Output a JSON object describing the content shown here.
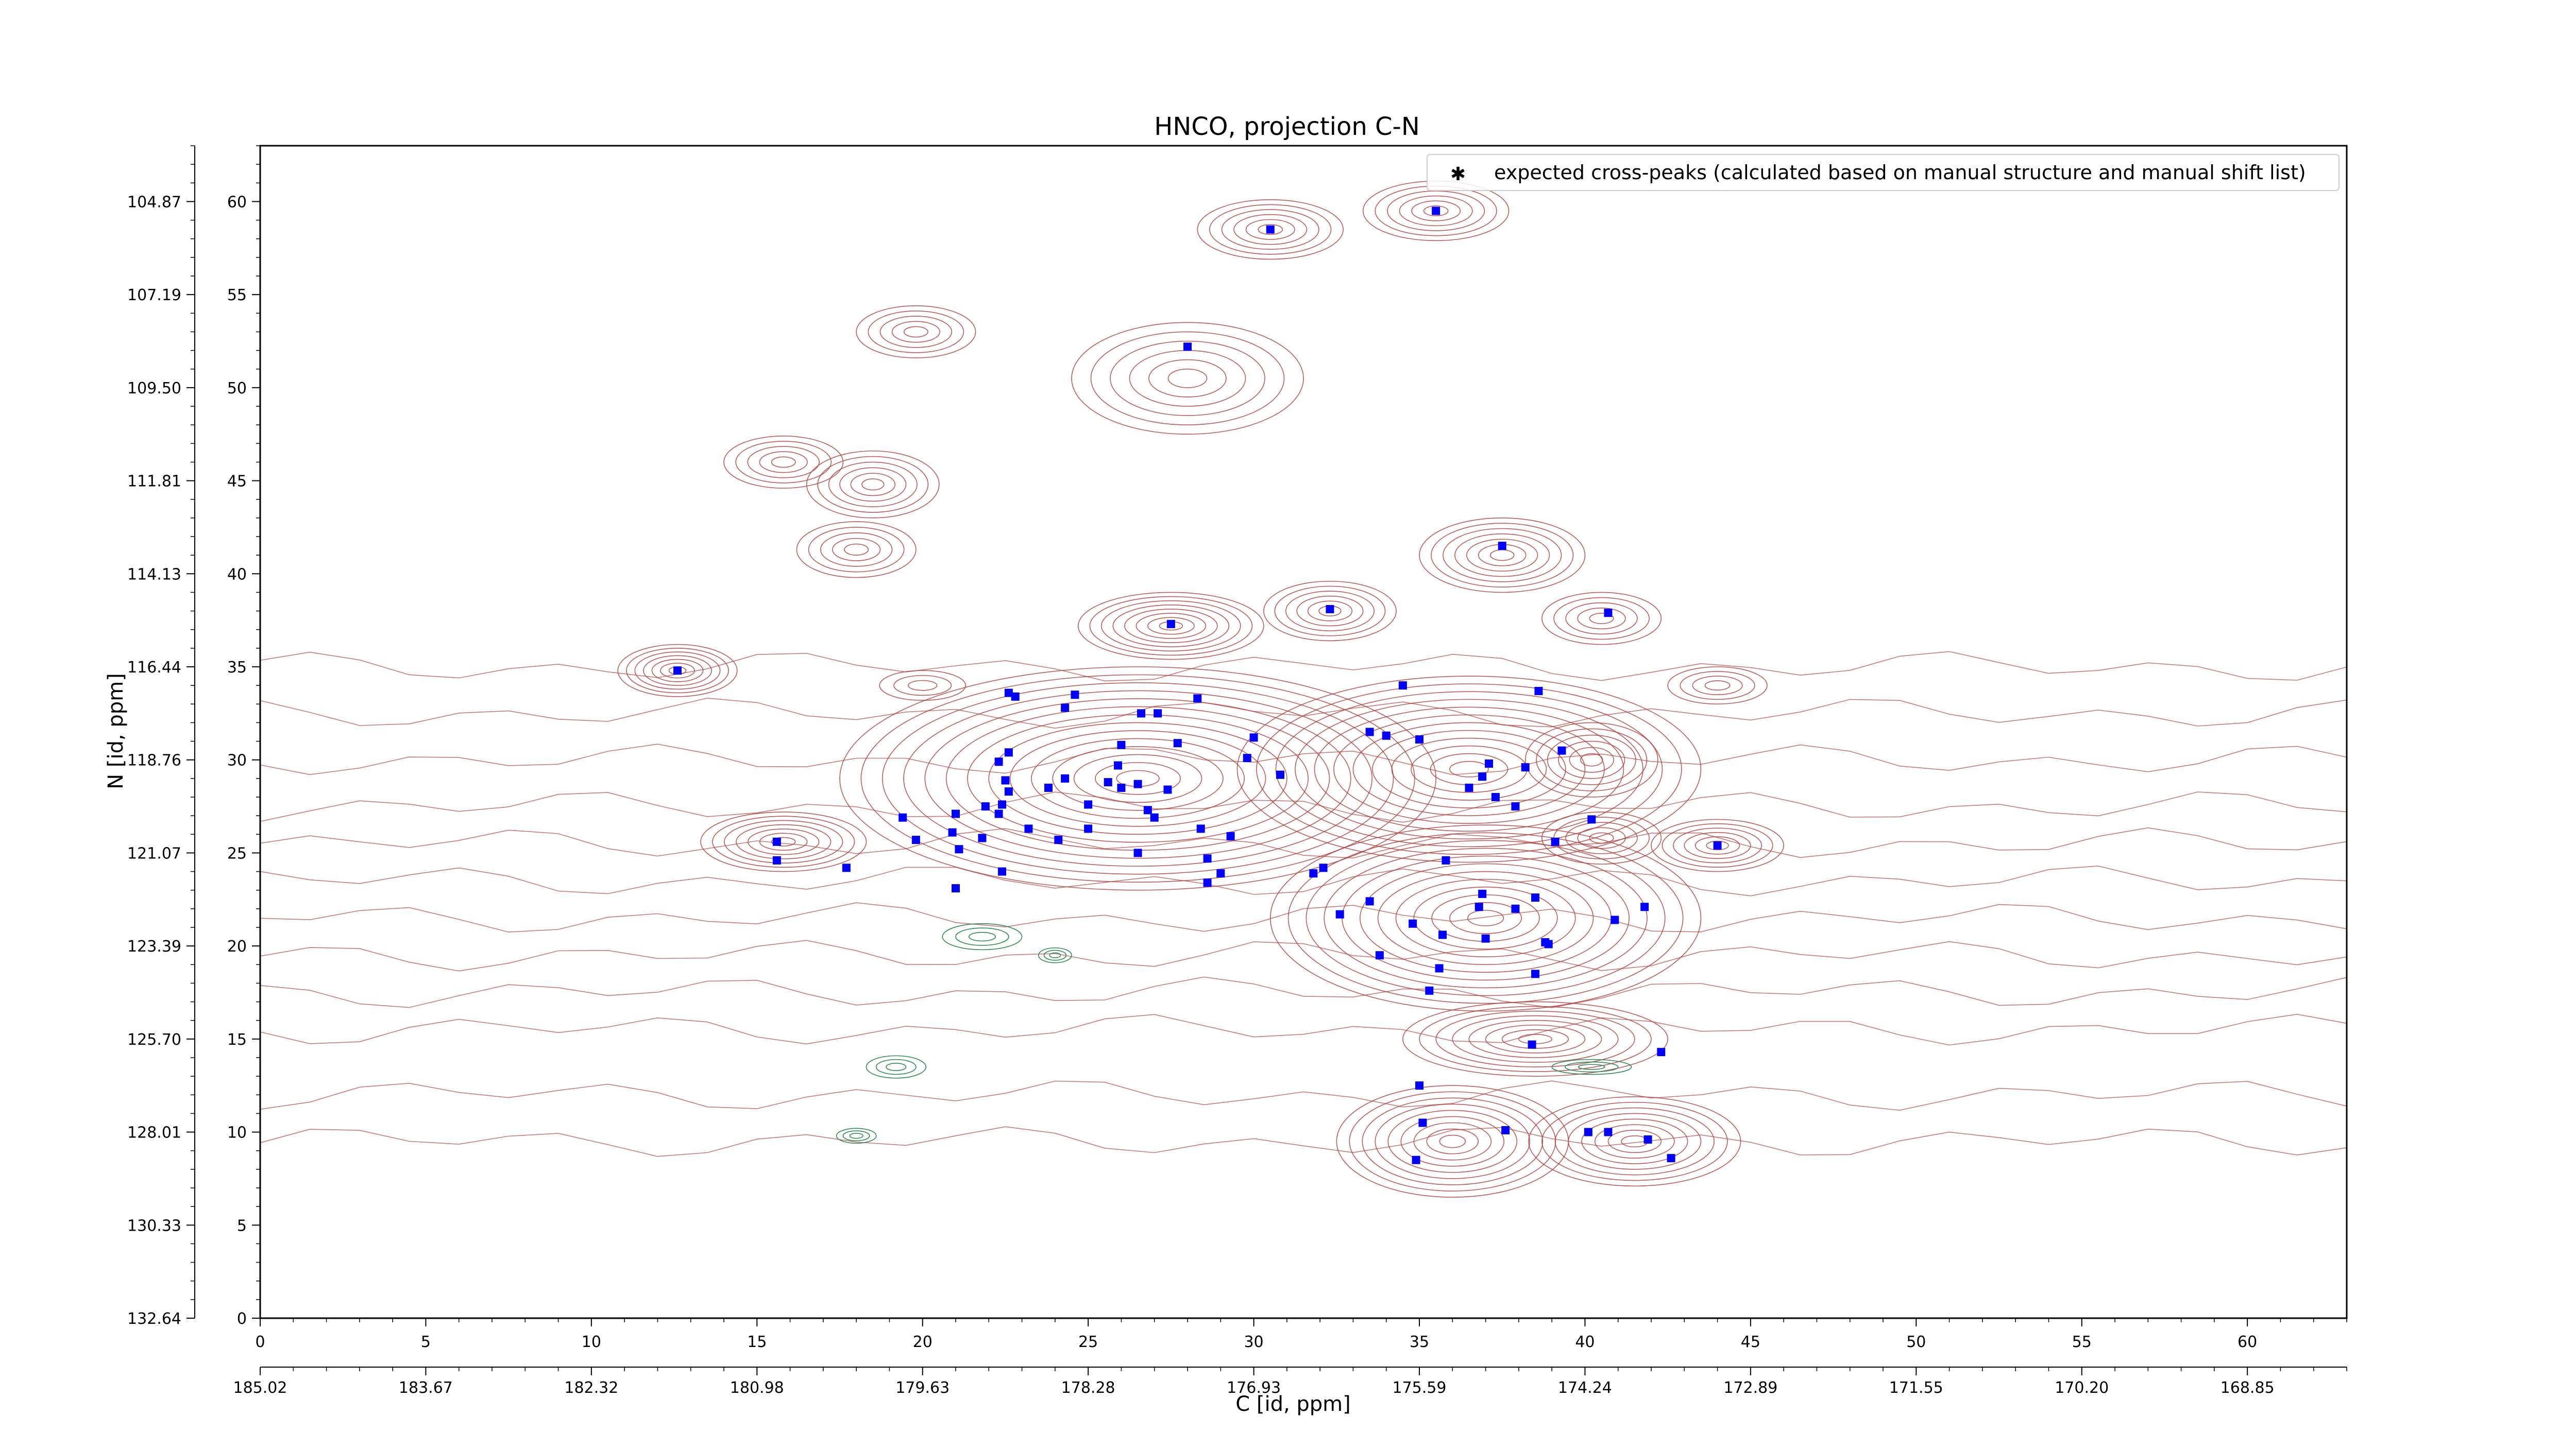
{
  "chart_data": {
    "type": "scatter",
    "title": "HNCO, projection C-N",
    "xlabel": "C [id, ppm]",
    "ylabel": "N [id, ppm]",
    "xlim": [
      0,
      63
    ],
    "ylim": [
      0,
      63
    ],
    "x_ticks": [
      0,
      5,
      10,
      15,
      20,
      25,
      30,
      35,
      40,
      45,
      50,
      55,
      60
    ],
    "y_ticks": [
      0,
      5,
      10,
      15,
      20,
      25,
      30,
      35,
      40,
      45,
      50,
      55,
      60
    ],
    "secondary_x_ticks": [
      {
        "x": 0,
        "label": "185.02"
      },
      {
        "x": 5,
        "label": "183.67"
      },
      {
        "x": 10,
        "label": "182.32"
      },
      {
        "x": 15,
        "label": "180.98"
      },
      {
        "x": 20,
        "label": "179.63"
      },
      {
        "x": 25,
        "label": "178.28"
      },
      {
        "x": 30,
        "label": "176.93"
      },
      {
        "x": 35,
        "label": "175.59"
      },
      {
        "x": 40,
        "label": "174.24"
      },
      {
        "x": 45,
        "label": "172.89"
      },
      {
        "x": 50,
        "label": "171.55"
      },
      {
        "x": 55,
        "label": "170.20"
      },
      {
        "x": 60,
        "label": "168.85"
      }
    ],
    "secondary_y_ticks": [
      {
        "y": 60,
        "label": "104.87"
      },
      {
        "y": 55,
        "label": "107.19"
      },
      {
        "y": 50,
        "label": "109.50"
      },
      {
        "y": 45,
        "label": "111.81"
      },
      {
        "y": 40,
        "label": "114.13"
      },
      {
        "y": 35,
        "label": "116.44"
      },
      {
        "y": 30,
        "label": "118.76"
      },
      {
        "y": 25,
        "label": "121.07"
      },
      {
        "y": 20,
        "label": "123.39"
      },
      {
        "y": 15,
        "label": "125.70"
      },
      {
        "y": 10,
        "label": "128.01"
      },
      {
        "y": 5,
        "label": "130.33"
      },
      {
        "y": 0,
        "label": "132.64"
      }
    ],
    "legend": {
      "position": "top-right",
      "entries": [
        "expected cross-peaks (calculated based on manual structure and manual shift list)"
      ]
    },
    "grid": false,
    "colors": {
      "peaks": "#0000ff",
      "contour_positive": "#b0413e",
      "contour_negative": "#2e8b57"
    },
    "series": [
      {
        "name": "expected cross-peaks (calculated based on manual structure and manual shift list)",
        "points": [
          [
            30.5,
            58.5
          ],
          [
            35.5,
            59.5
          ],
          [
            28,
            52.2
          ],
          [
            37.5,
            41.5
          ],
          [
            27.5,
            37.3
          ],
          [
            32.3,
            38.1
          ],
          [
            40.7,
            37.9
          ],
          [
            12.6,
            34.8
          ],
          [
            22.6,
            33.6
          ],
          [
            22.8,
            33.4
          ],
          [
            24.6,
            33.5
          ],
          [
            24.3,
            32.8
          ],
          [
            26.6,
            32.5
          ],
          [
            27.1,
            32.5
          ],
          [
            28.3,
            33.3
          ],
          [
            34.5,
            34.0
          ],
          [
            33.5,
            31.5
          ],
          [
            34.0,
            31.3
          ],
          [
            35.0,
            31.1
          ],
          [
            38.6,
            33.7
          ],
          [
            30,
            31.2
          ],
          [
            29.8,
            30.1
          ],
          [
            30.8,
            29.2
          ],
          [
            27.7,
            30.9
          ],
          [
            26.0,
            30.8
          ],
          [
            25.9,
            29.7
          ],
          [
            22.3,
            29.9
          ],
          [
            22.6,
            30.4
          ],
          [
            24.3,
            29.0
          ],
          [
            23.8,
            28.5
          ],
          [
            22.5,
            28.9
          ],
          [
            22.6,
            28.3
          ],
          [
            22.4,
            27.6
          ],
          [
            25.6,
            28.8
          ],
          [
            26.0,
            28.5
          ],
          [
            26.5,
            28.7
          ],
          [
            27.4,
            28.4
          ],
          [
            25.0,
            27.6
          ],
          [
            21.9,
            27.5
          ],
          [
            21.0,
            27.1
          ],
          [
            22.3,
            27.1
          ],
          [
            26.8,
            27.3
          ],
          [
            27.0,
            26.9
          ],
          [
            19.4,
            26.9
          ],
          [
            20.9,
            26.1
          ],
          [
            21.8,
            25.8
          ],
          [
            23.2,
            26.3
          ],
          [
            25.0,
            26.3
          ],
          [
            28.4,
            26.3
          ],
          [
            29.3,
            25.9
          ],
          [
            24.1,
            25.7
          ],
          [
            19.8,
            25.7
          ],
          [
            15.6,
            25.6
          ],
          [
            15.6,
            24.6
          ],
          [
            17.7,
            24.2
          ],
          [
            21.1,
            25.2
          ],
          [
            22.4,
            24.0
          ],
          [
            26.5,
            25.0
          ],
          [
            28.6,
            24.7
          ],
          [
            29.0,
            23.9
          ],
          [
            28.6,
            23.4
          ],
          [
            21.0,
            23.1
          ],
          [
            37.1,
            29.8
          ],
          [
            38.2,
            29.6
          ],
          [
            39.3,
            30.5
          ],
          [
            36.5,
            28.5
          ],
          [
            37.3,
            28.0
          ],
          [
            37.9,
            27.5
          ],
          [
            36.9,
            29.1
          ],
          [
            40.2,
            26.8
          ],
          [
            39.1,
            25.6
          ],
          [
            44,
            25.4
          ],
          [
            31.8,
            23.9
          ],
          [
            32.1,
            24.2
          ],
          [
            35.8,
            24.6
          ],
          [
            33.5,
            22.4
          ],
          [
            32.6,
            21.7
          ],
          [
            34.8,
            21.2
          ],
          [
            36.9,
            22.8
          ],
          [
            37.9,
            22.0
          ],
          [
            38.5,
            22.6
          ],
          [
            41.8,
            22.1
          ],
          [
            40.9,
            21.4
          ],
          [
            36.8,
            22.1
          ],
          [
            35.7,
            20.6
          ],
          [
            37.0,
            20.4
          ],
          [
            38.8,
            20.2
          ],
          [
            38.9,
            20.1
          ],
          [
            33.8,
            19.5
          ],
          [
            35.6,
            18.8
          ],
          [
            35.3,
            17.6
          ],
          [
            38.5,
            18.5
          ],
          [
            38.4,
            14.7
          ],
          [
            42.3,
            14.3
          ],
          [
            35.0,
            12.5
          ],
          [
            35.1,
            10.5
          ],
          [
            37.6,
            10.1
          ],
          [
            34.9,
            8.5
          ],
          [
            40.1,
            10.0
          ],
          [
            40.7,
            10.0
          ],
          [
            41.9,
            9.6
          ],
          [
            42.6,
            8.6
          ]
        ]
      }
    ]
  }
}
